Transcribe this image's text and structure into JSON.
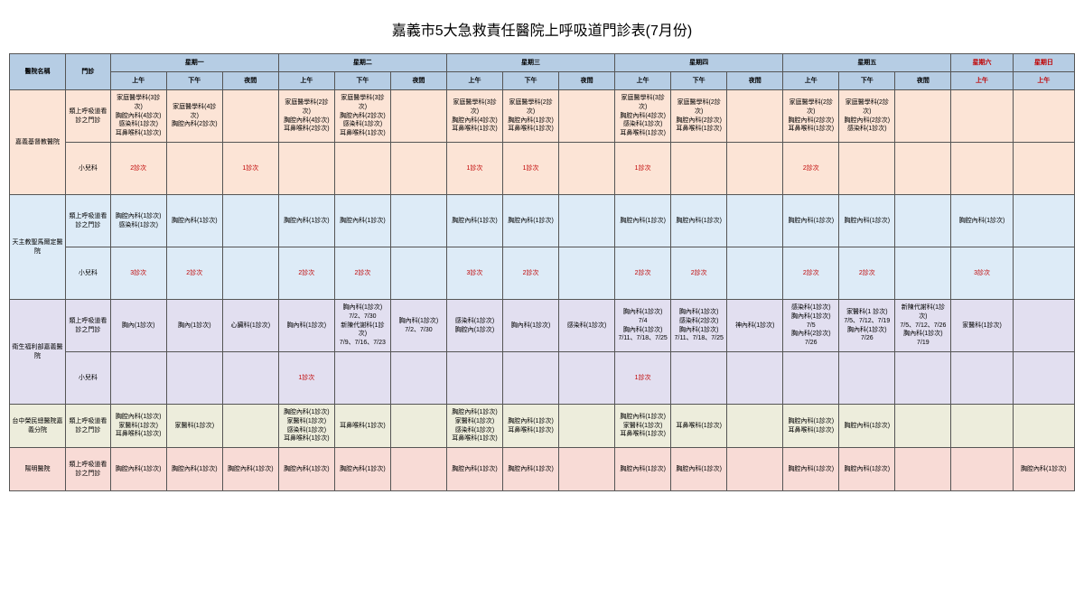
{
  "title": "嘉義市5大急救責任醫院上呼吸道門診表(7月份)",
  "headers": {
    "hospital": "醫院名稱",
    "clinic": "門診",
    "days": [
      "星期一",
      "星期二",
      "星期三",
      "星期四",
      "星期五",
      "星期六",
      "星期日"
    ],
    "slots": [
      "上午",
      "下午",
      "夜間"
    ],
    "wkndSlot": "上午"
  },
  "hospitals": [
    {
      "name": "嘉義基督教醫院",
      "bg": "bg1",
      "rows": [
        {
          "type": "類上呼吸道看診之門診",
          "cells": [
            [
              "家庭醫學科(3診次)",
              "胸腔內科(4診次)",
              "感染科(1診次)",
              "耳鼻喉科(1診次)"
            ],
            [
              "家庭醫學科(4診次)",
              "胸腔內科(2診次)"
            ],
            [],
            [
              "家庭醫學科(2診次)",
              "胸腔內科(4診次)",
              "耳鼻喉科(2診次)"
            ],
            [
              "家庭醫學科(3診次)",
              "胸腔內科(2診次)",
              "感染科(1診次)",
              "耳鼻喉科(1診次)"
            ],
            [],
            [
              "家庭醫學科(3診次)",
              "胸腔內科(4診次)",
              "耳鼻喉科(1診次)"
            ],
            [
              "家庭醫學科(2診次)",
              "胸腔內科(1診次)",
              "耳鼻喉科(1診次)"
            ],
            [],
            [
              "家庭醫學科(3診次)",
              "胸腔內科(4診次)",
              "感染科(1診次)",
              "耳鼻喉科(1診次)"
            ],
            [
              "家庭醫學科(2診次)",
              "胸腔內科(2診次)",
              "耳鼻喉科(1診次)"
            ],
            [],
            [
              "家庭醫學科(2診次)",
              "胸腔內科(2診次)",
              "耳鼻喉科(1診次)"
            ],
            [
              "家庭醫學科(2診次)",
              "胸腔內科(2診次)",
              "感染科(1診次)"
            ],
            [],
            [],
            []
          ]
        },
        {
          "type": "小兒科",
          "cells": [
            [
              "2診次"
            ],
            [],
            [
              "1診次"
            ],
            [],
            [],
            [],
            [
              "1診次"
            ],
            [
              "1診次"
            ],
            [],
            [
              "1診次"
            ],
            [],
            [],
            [
              "2診次"
            ],
            [],
            [],
            [],
            []
          ],
          "red": true
        }
      ]
    },
    {
      "name": "天主教聖馬爾定醫院",
      "bg": "bg2",
      "rows": [
        {
          "type": "類上呼吸道看診之門診",
          "cells": [
            [
              "胸腔內科(1診次)",
              "感染科(1診次)"
            ],
            [
              "胸腔內科(1診次)"
            ],
            [],
            [
              "胸腔內科(1診次)"
            ],
            [
              "胸腔內科(1診次)"
            ],
            [],
            [
              "胸腔內科(1診次)"
            ],
            [
              "胸腔內科(1診次)"
            ],
            [],
            [
              "胸腔內科(1診次)"
            ],
            [
              "胸腔內科(1診次)"
            ],
            [],
            [
              "胸腔內科(1診次)"
            ],
            [
              "胸腔內科(1診次)"
            ],
            [],
            [
              "胸腔內科(1診次)"
            ],
            []
          ]
        },
        {
          "type": "小兒科",
          "cells": [
            [
              "3診次"
            ],
            [
              "2診次"
            ],
            [],
            [
              "2診次"
            ],
            [
              "2診次"
            ],
            [],
            [
              "3診次"
            ],
            [
              "2診次"
            ],
            [],
            [
              "2診次"
            ],
            [
              "2診次"
            ],
            [],
            [
              "2診次"
            ],
            [
              "2診次"
            ],
            [],
            [
              "3診次"
            ],
            []
          ],
          "red": true
        }
      ]
    },
    {
      "name": "衛生福利部嘉義醫院",
      "bg": "bg3",
      "rows": [
        {
          "type": "類上呼吸道看診之門診",
          "cells": [
            [
              "胸內(1診次)"
            ],
            [
              "胸內(1診次)"
            ],
            [
              "心臟科(1診次)"
            ],
            [
              "胸內科(1診次)"
            ],
            [
              "胸內科(1診次)",
              "7/2、7/30",
              "新陳代謝科(1診次)",
              "7/9、7/16、7/23"
            ],
            [
              "胸內科(1診次)",
              "7/2、7/30"
            ],
            [
              "感染科(1診次)",
              "胸腔內(1診次)"
            ],
            [
              "胸內科(1診次)"
            ],
            [
              "感染科(1診次)"
            ],
            [
              "胸內科(1診次)",
              "7/4",
              "胸內科(1診次)",
              "7/11、7/18、7/25"
            ],
            [
              "胸內科(1診次)",
              "感染科(2診次)",
              "胸內科(1診次)",
              "7/11、7/18、7/25"
            ],
            [
              "神內科(1診次)"
            ],
            [
              "感染科(1診次)",
              "胸內科(1診次)",
              "7/5",
              "胸內科(2診次)",
              "7/26"
            ],
            [
              "家醫科(1 診次)",
              "7/5、7/12、7/19",
              "胸內科(1診次)",
              "7/26"
            ],
            [
              "新陳代謝科(1診次)",
              "7/5、7/12、7/26",
              "胸內科(1診次)",
              "7/19"
            ],
            [
              "家醫科(1診次)"
            ],
            []
          ]
        },
        {
          "type": "小兒科",
          "cells": [
            [],
            [],
            [],
            [
              "1診次"
            ],
            [],
            [],
            [],
            [],
            [],
            [
              "1診次"
            ],
            [],
            [],
            [],
            [],
            [],
            [],
            []
          ],
          "red": true
        }
      ]
    },
    {
      "name": "台中榮民總醫院嘉義分院",
      "bg": "bg4",
      "rows": [
        {
          "type": "類上呼吸道看診之門診",
          "cells": [
            [
              "胸腔內科(1診次)",
              "家醫科(1診次)",
              "耳鼻喉科(1診次)"
            ],
            [
              "家醫科(1診次)"
            ],
            [],
            [
              "胸腔內科(1診次)",
              "家醫科(1診次)",
              "感染科(1診次)",
              "耳鼻喉科(1診次)"
            ],
            [
              "耳鼻喉科(1診次)"
            ],
            [],
            [
              "胸腔內科(1診次)",
              "家醫科(1診次)",
              "感染科(1診次)",
              "耳鼻喉科(1診次)"
            ],
            [
              "胸腔內科(1診次)",
              "耳鼻喉科(1診次)"
            ],
            [],
            [
              "胸腔內科(1診次)",
              "家醫科(1診次)",
              "耳鼻喉科(1診次)"
            ],
            [
              "耳鼻喉科(1診次)"
            ],
            [],
            [
              "胸腔內科(1診次)",
              "耳鼻喉科(1診次)"
            ],
            [
              "胸腔內科(1診次)"
            ],
            [],
            [],
            []
          ]
        }
      ]
    },
    {
      "name": "陽明醫院",
      "bg": "bg5",
      "rows": [
        {
          "type": "類上呼吸道看診之門診",
          "cells": [
            [
              "胸腔內科(1診次)"
            ],
            [
              "胸腔內科(1診次)"
            ],
            [
              "胸腔內科(1診次)"
            ],
            [
              "胸腔內科(1診次)"
            ],
            [
              "胸腔內科(1診次)"
            ],
            [],
            [
              "胸腔內科(1診次)"
            ],
            [
              "胸腔內科(1診次)"
            ],
            [],
            [
              "胸腔內科(1診次)"
            ],
            [
              "胸腔內科(1診次)"
            ],
            [],
            [
              "胸腔內科(1診次)"
            ],
            [
              "胸腔內科(1診次)"
            ],
            [],
            [],
            [
              "胸腔內科(1診次)"
            ]
          ]
        }
      ]
    }
  ]
}
